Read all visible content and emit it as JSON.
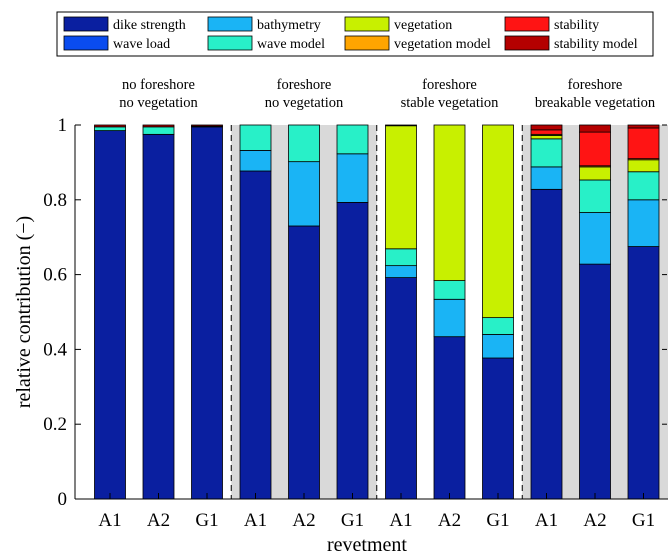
{
  "chart_data": {
    "type": "bar",
    "stacked": true,
    "xlabel": "revetment",
    "ylabel": "relative contribution (−)",
    "ylim": [
      0,
      1
    ],
    "yticks": [
      "0",
      "0.2",
      "0.4",
      "0.6",
      "0.8",
      "1"
    ],
    "ytick_values": [
      0,
      0.2,
      0.4,
      0.6,
      0.8,
      1
    ],
    "legend_position": "top",
    "groups": [
      {
        "title_line1": "no foreshore",
        "title_line2": "no vegetation",
        "shaded": false
      },
      {
        "title_line1": "foreshore",
        "title_line2": "no vegetation",
        "shaded": true
      },
      {
        "title_line1": "foreshore",
        "title_line2": "stable vegetation",
        "shaded": false
      },
      {
        "title_line1": "foreshore",
        "title_line2": "breakable vegetation",
        "shaded": true
      }
    ],
    "categories": [
      "A1",
      "A2",
      "G1",
      "A1",
      "A2",
      "G1",
      "A1",
      "A2",
      "G1",
      "A1",
      "A2",
      "G1"
    ],
    "series": [
      {
        "name": "dike strength",
        "color": "#0a1fa0",
        "values": [
          0.985,
          0.975,
          0.995,
          0.877,
          0.73,
          0.793,
          0.592,
          0.434,
          0.377,
          0.828,
          0.628,
          0.675
        ]
      },
      {
        "name": "wave load",
        "color": "#0a4cf0",
        "values": [
          0.0,
          0.0,
          0.0,
          0.0,
          0.0,
          0.0,
          0.0,
          0.0,
          0.0,
          0.0,
          0.0,
          0.0
        ]
      },
      {
        "name": "bathymetry",
        "color": "#1ab4f5",
        "values": [
          0.0,
          0.0,
          0.0,
          0.055,
          0.172,
          0.13,
          0.032,
          0.1,
          0.063,
          0.06,
          0.138,
          0.125
        ]
      },
      {
        "name": "wave model",
        "color": "#28f0c8",
        "values": [
          0.01,
          0.02,
          0.002,
          0.068,
          0.098,
          0.077,
          0.045,
          0.05,
          0.045,
          0.075,
          0.087,
          0.075
        ]
      },
      {
        "name": "vegetation",
        "color": "#c8f000",
        "values": [
          0.0,
          0.0,
          0.0,
          0.0,
          0.0,
          0.0,
          0.329,
          0.416,
          0.515,
          0.009,
          0.035,
          0.032
        ]
      },
      {
        "name": "vegetation model",
        "color": "#ffa500",
        "values": [
          0.0,
          0.0,
          0.0,
          0.0,
          0.0,
          0.0,
          0.0,
          0.0,
          0.0,
          0.003,
          0.003,
          0.003
        ]
      },
      {
        "name": "stability",
        "color": "#ff1414",
        "values": [
          0.0,
          0.0,
          0.0,
          0.0,
          0.0,
          0.0,
          0.0,
          0.0,
          0.0,
          0.012,
          0.09,
          0.082
        ]
      },
      {
        "name": "stability model",
        "color": "#b40000",
        "values": [
          0.005,
          0.005,
          0.003,
          0.0,
          0.0,
          0.0,
          0.004,
          0.0,
          0.0,
          0.013,
          0.019,
          0.008
        ]
      }
    ]
  }
}
